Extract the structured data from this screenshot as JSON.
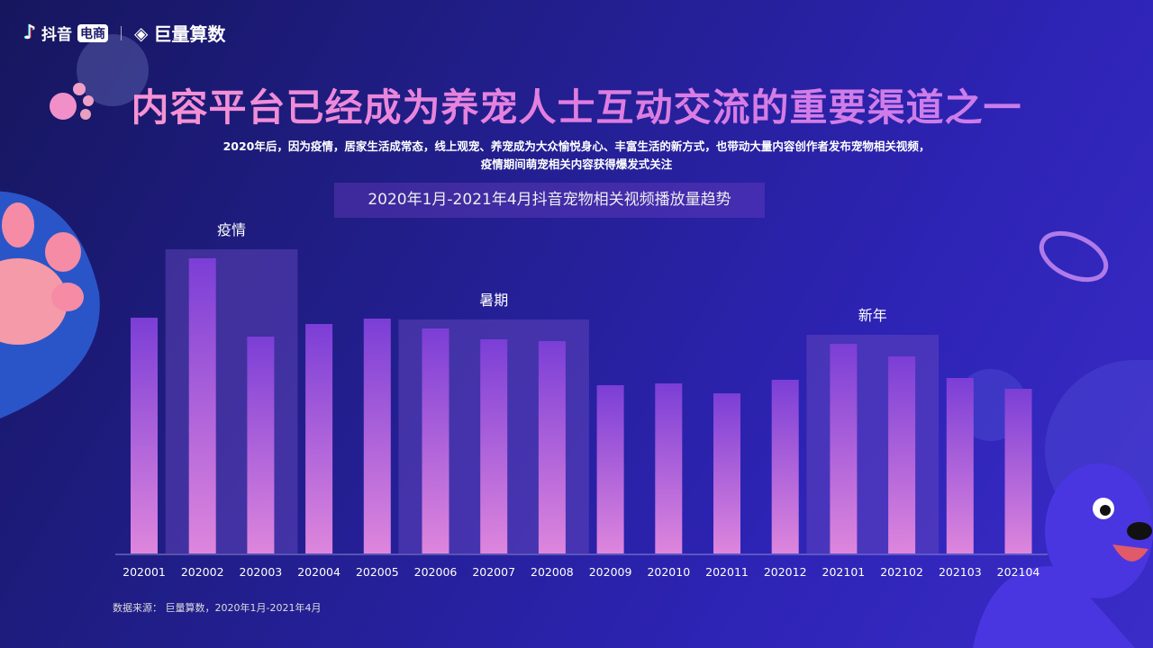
{
  "header": {
    "brand_douyin": "抖音",
    "brand_badge": "电商",
    "brand_juliang": "巨量算数"
  },
  "title": "内容平台已经成为养宠人士互动交流的重要渠道之一",
  "subtitle_lines": [
    "2020年后，因为疫情，居家生活成常态，线上观宠、养宠成为大众愉悦身心、丰富生活的新方式，也带动大量内容创作者发布宠物相关视频，",
    "疫情期间萌宠相关内容获得爆发式关注"
  ],
  "source": "数据来源：  巨量算数，2020年1月-2021年4月",
  "colors": {
    "bar_top": "#7b3ed6",
    "bar_bottom": "#de86dd",
    "highlight": "#6a4cc0"
  },
  "chart_data": {
    "type": "bar",
    "title": "2020年1月-2021年4月抖音宠物相关视频播放量趋势",
    "xlabel": "",
    "ylabel": "",
    "categories": [
      "202001",
      "202002",
      "202003",
      "202004",
      "202005",
      "202006",
      "202007",
      "202008",
      "202009",
      "202010",
      "202011",
      "202012",
      "202101",
      "202102",
      "202103",
      "202104"
    ],
    "values": [
      262,
      328,
      241,
      255,
      261,
      250,
      238,
      236,
      187,
      189,
      178,
      193,
      233,
      219,
      195,
      183
    ],
    "value_note_unprinted": "relative heights; no y-axis printed",
    "ylim": [
      0,
      340
    ],
    "grid": false,
    "annotations": [
      {
        "label": "疫情",
        "from": "202002",
        "to": "202003"
      },
      {
        "label": "暑期",
        "from": "202006",
        "to": "202008"
      },
      {
        "label": "新年",
        "from": "202101",
        "to": "202102"
      }
    ]
  }
}
